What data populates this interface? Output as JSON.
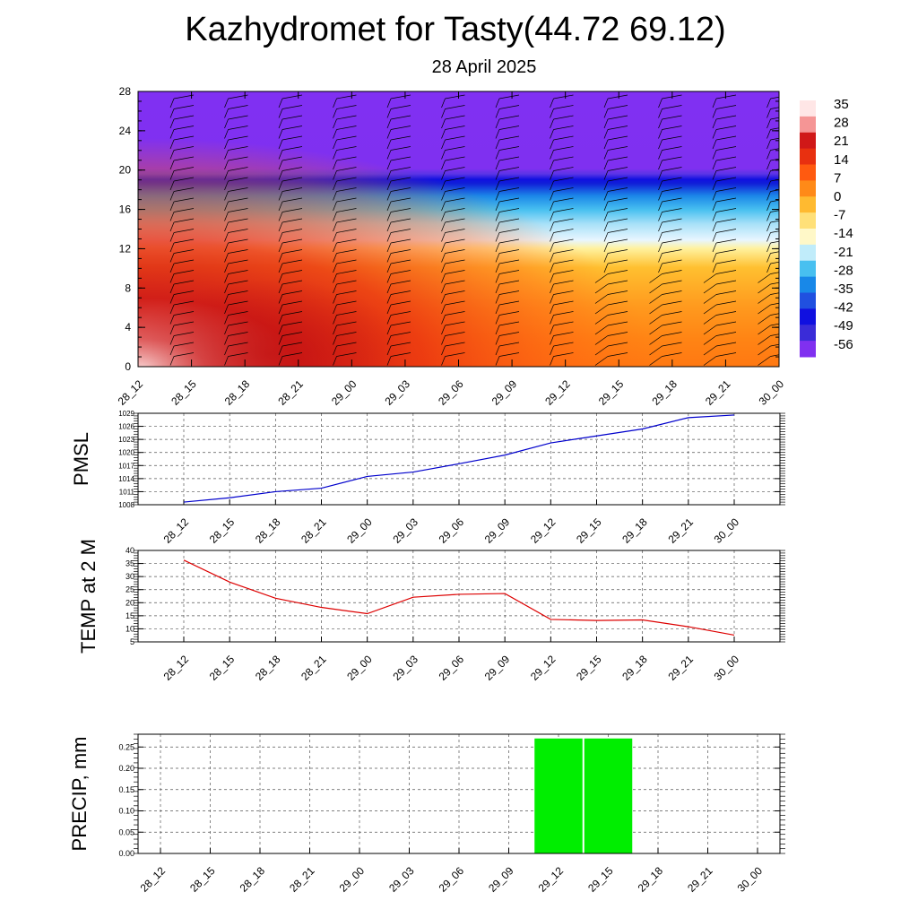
{
  "title": "Kazhydromet for Tasty(44.72 69.12)",
  "subtitle": "28 April 2025",
  "colors": {
    "pmsl_line": "#0000cc",
    "temp_line": "#dd0000",
    "precip_bar": "#00ee00",
    "grid": "#555555"
  },
  "chart_data": [
    {
      "type": "heatmap",
      "name": "cross-section",
      "x": [
        "28_12",
        "28_15",
        "28_18",
        "28_21",
        "29_00",
        "29_03",
        "29_06",
        "29_09",
        "29_12",
        "29_15",
        "29_18",
        "29_21",
        "30_00"
      ],
      "y_ticks": [
        0,
        4,
        8,
        12,
        16,
        20,
        24,
        28
      ],
      "ylim": [
        0,
        28
      ],
      "colorbar_labels": [
        "35",
        "28",
        "21",
        "14",
        "7",
        "0",
        "-7",
        "-14",
        "-21",
        "-28",
        "-35",
        "-42",
        "-49",
        "-56"
      ],
      "colorbar_colors": [
        "#ffe6e6",
        "#f59595",
        "#d01818",
        "#e83010",
        "#ff5a10",
        "#ff8a18",
        "#ffba30",
        "#ffe078",
        "#fff8c8",
        "#c0ecfa",
        "#48c0f0",
        "#1888e8",
        "#2050e0",
        "#1010e0",
        "#3a2cd8",
        "#8030f0"
      ]
    },
    {
      "type": "line",
      "ylabel": "PMSL",
      "x": [
        "28_12",
        "28_15",
        "28_18",
        "28_21",
        "29_00",
        "29_03",
        "29_06",
        "29_09",
        "29_12",
        "29_15",
        "29_18",
        "29_21",
        "30_00"
      ],
      "values": [
        1008.6,
        1009.6,
        1011.0,
        1011.8,
        1014.5,
        1015.5,
        1017.4,
        1019.4,
        1022.2,
        1023.8,
        1025.4,
        1028.0,
        1028.6
      ],
      "ylim": [
        1008,
        1029
      ],
      "y_ticks": [
        "1008",
        "1011",
        "1014",
        "1017",
        "1020",
        "1023",
        "1026",
        "1029"
      ],
      "grid": true
    },
    {
      "type": "line",
      "ylabel": "TEMP at 2 M",
      "x": [
        "28_12",
        "28_15",
        "28_18",
        "28_21",
        "29_00",
        "29_03",
        "29_06",
        "29_09",
        "29_12",
        "29_15",
        "29_18",
        "29_21",
        "30_00"
      ],
      "values": [
        36.3,
        27.9,
        21.7,
        18.2,
        15.8,
        22.1,
        23.2,
        23.5,
        13.6,
        13.2,
        13.4,
        10.8,
        7.6
      ],
      "ylim": [
        5,
        40
      ],
      "y_ticks": [
        "5",
        "10",
        "15",
        "20",
        "25",
        "30",
        "35",
        "40"
      ],
      "grid": true
    },
    {
      "type": "bar",
      "ylabel": "PRECIP, mm",
      "x": [
        "28_12",
        "28_15",
        "28_18",
        "28_21",
        "29_00",
        "29_03",
        "29_06",
        "29_09",
        "29_12",
        "29_15",
        "29_18",
        "29_21",
        "30_00"
      ],
      "values": [
        0,
        0,
        0,
        0,
        0,
        0,
        0,
        0,
        0.27,
        0.27,
        0,
        0,
        0
      ],
      "ylim": [
        0,
        0.28
      ],
      "y_ticks": [
        "0.00",
        "0.05",
        "0.10",
        "0.15",
        "0.20",
        "0.25"
      ],
      "grid": true
    }
  ]
}
